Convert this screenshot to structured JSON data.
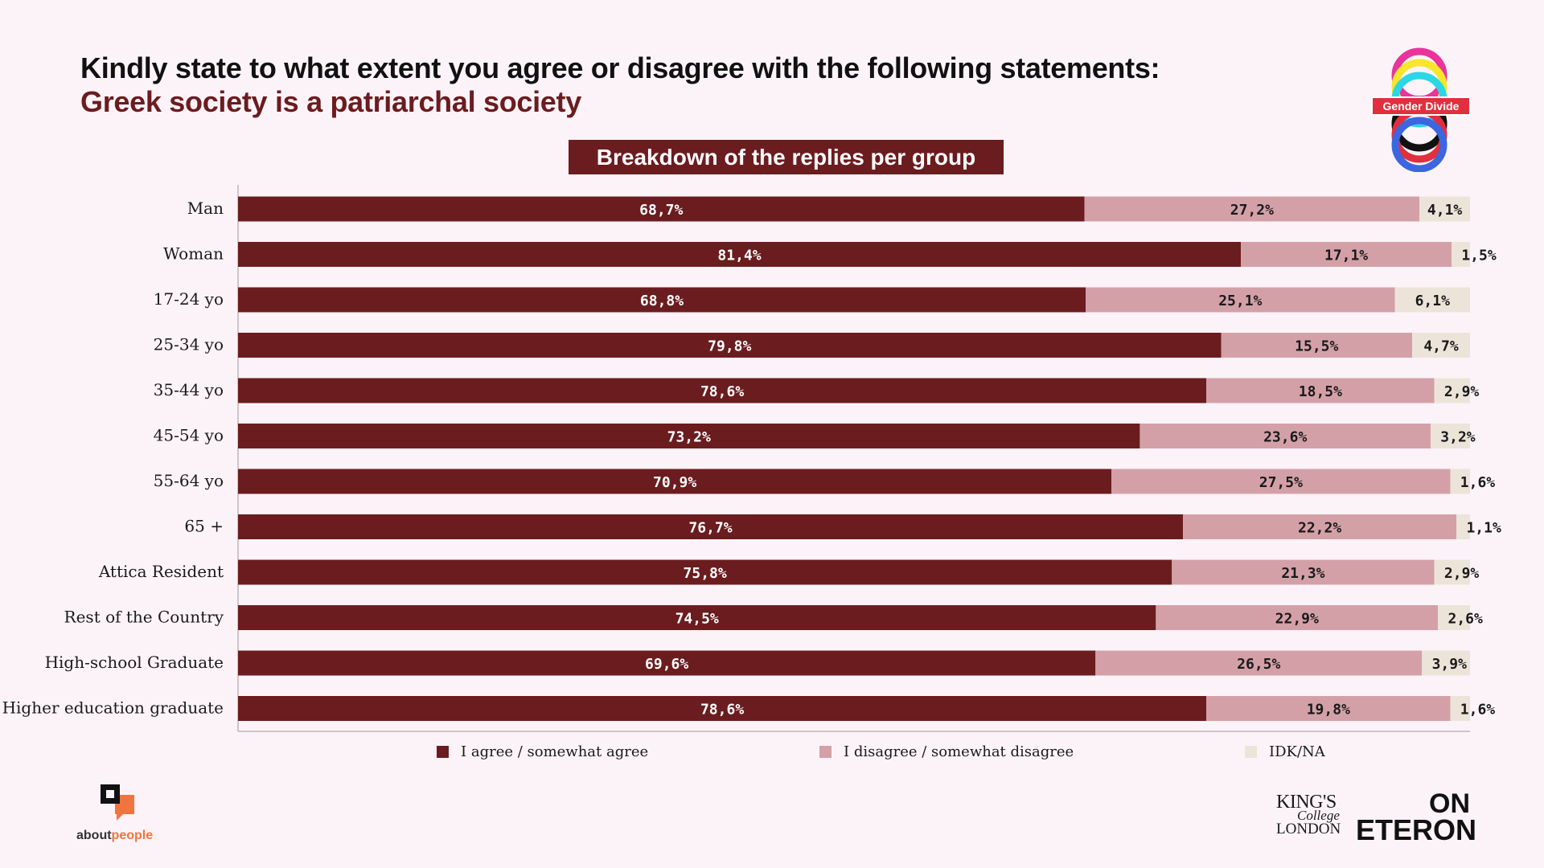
{
  "header": {
    "title": "Kindly state to what extent you agree or disagree with the following statements:",
    "subtitle": "Greek society is a patriarchal society",
    "breakdown_label": "Breakdown of the replies per group"
  },
  "badge": {
    "text": "Gender Divide"
  },
  "logos": {
    "aboutpeople_prefix": "about",
    "aboutpeople_suffix": "people",
    "kings_line1": "KING'S",
    "kings_line2": "College",
    "kings_line3": "LONDON",
    "eteron_line1": "ON",
    "eteron_line2": "ETERON"
  },
  "colors": {
    "agree": "#6b1c1f",
    "disagree": "#d4a0a8",
    "idk": "#ece4d9",
    "background": "#fcf3f8"
  },
  "chart_data": {
    "type": "bar",
    "orientation": "horizontal",
    "stacked": true,
    "xlim": [
      0,
      100
    ],
    "categories": [
      "Man",
      "Woman",
      "17-24 yo",
      "25-34 yo",
      "35-44 yo",
      "45-54 yo",
      "55-64 yo",
      "65 +",
      "Attica Resident",
      "Rest of the Country",
      "High-school Graduate",
      "Higher education graduate"
    ],
    "series": [
      {
        "name": "I agree / somewhat agree",
        "values": [
          68.7,
          81.4,
          68.8,
          79.8,
          78.6,
          73.2,
          70.9,
          76.7,
          75.8,
          74.5,
          69.6,
          78.6
        ],
        "labels": [
          "68,7%",
          "81,4%",
          "68,8%",
          "79,8%",
          "78,6%",
          "73,2%",
          "70,9%",
          "76,7%",
          "75,8%",
          "74,5%",
          "69,6%",
          "78,6%"
        ]
      },
      {
        "name": "I disagree / somewhat disagree",
        "values": [
          27.2,
          17.1,
          25.1,
          15.5,
          18.5,
          23.6,
          27.5,
          22.2,
          21.3,
          22.9,
          26.5,
          19.8
        ],
        "labels": [
          "27,2%",
          "17,1%",
          "25,1%",
          "15,5%",
          "18,5%",
          "23,6%",
          "27,5%",
          "22,2%",
          "21,3%",
          "22,9%",
          "26,5%",
          "19,8%"
        ]
      },
      {
        "name": "IDK/NA",
        "values": [
          4.1,
          1.5,
          6.1,
          4.7,
          2.9,
          3.2,
          1.6,
          1.1,
          2.9,
          2.6,
          3.9,
          1.6
        ],
        "labels": [
          "4,1%",
          "1,5%",
          "6,1%",
          "4,7%",
          "2,9%",
          "3,2%",
          "1,6%",
          "1,1%",
          "2,9%",
          "2,6%",
          "3,9%",
          "1,6%"
        ]
      }
    ],
    "legend_position": "bottom",
    "grid": false
  }
}
